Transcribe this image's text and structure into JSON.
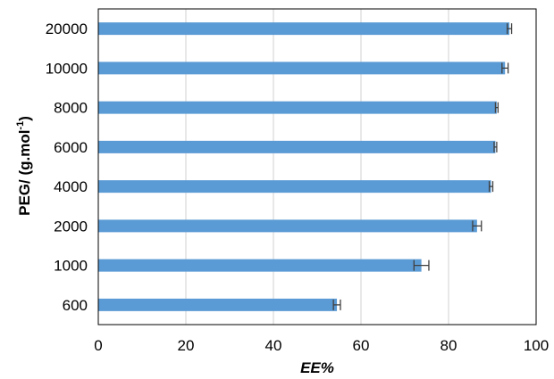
{
  "chart_data": {
    "type": "bar",
    "orientation": "horizontal",
    "categories": [
      "600",
      "1000",
      "2000",
      "4000",
      "6000",
      "8000",
      "10000",
      "20000"
    ],
    "values": [
      54.5,
      73.8,
      86.5,
      89.7,
      90.7,
      91.0,
      92.9,
      93.9
    ],
    "errors": [
      0.8,
      1.7,
      1.0,
      0.4,
      0.3,
      0.3,
      0.7,
      0.5
    ],
    "xlabel": "EE%",
    "ylabel_main": "PEG/ (g.mol",
    "ylabel_sup": "-1",
    "ylabel_end": ")",
    "xlim": [
      0,
      100
    ],
    "xticks": [
      0,
      20,
      40,
      60,
      80,
      100
    ],
    "grid": "vertical",
    "bar_color": "#5b9bd5",
    "error_color": "#404040",
    "grid_color": "#d9d9d9"
  }
}
